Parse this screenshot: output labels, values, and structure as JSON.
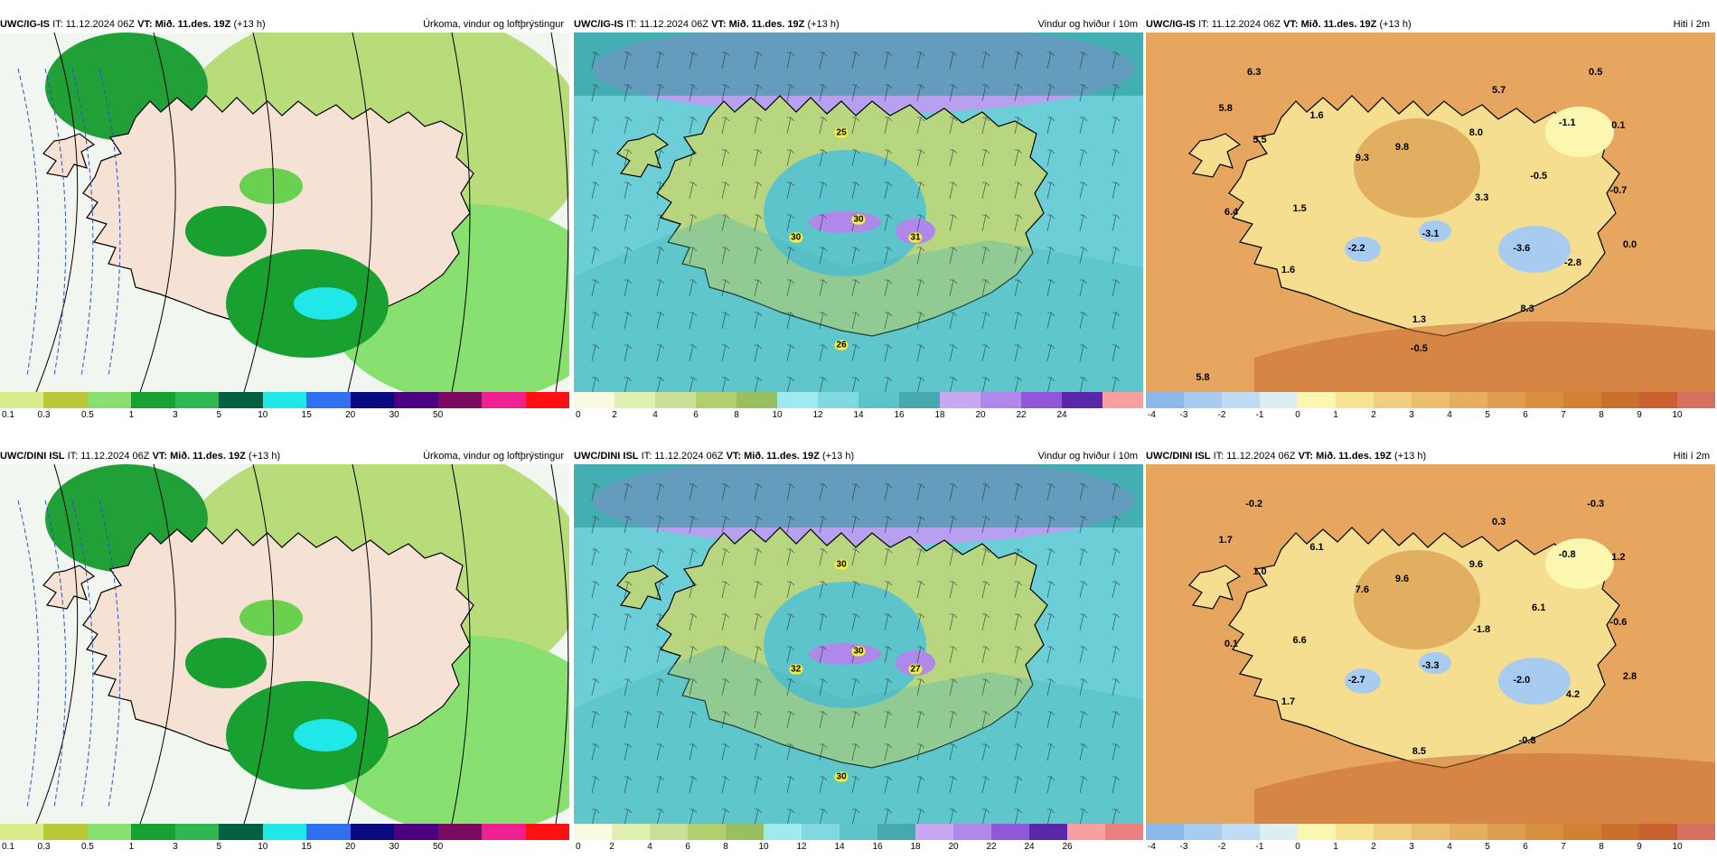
{
  "panels": [
    {
      "model": "UWC/IG-IS",
      "it_label": "IT:",
      "it": "11.12.2024 06Z",
      "vt_label": "VT:",
      "vt": "Mið. 11.des. 19Z",
      "lead": "(+13 h)",
      "varname": "Úrkoma, vindur og loftþrýstingur",
      "kind": "precip",
      "colors": [
        "#d8ec8c",
        "#b8c838",
        "#88e070",
        "#18a030",
        "#30b850",
        "#046040",
        "#20e8e8",
        "#3070f0",
        "#0a0a80",
        "#4a0080",
        "#7a0a60",
        "#f02090",
        "#ff1010"
      ],
      "ticks": [
        "0.1",
        "0.3",
        "0.5",
        "1",
        "3",
        "5",
        "10",
        "15",
        "20",
        "30",
        "50"
      ],
      "markers": []
    },
    {
      "model": "UWC/IG-IS",
      "it_label": "IT:",
      "it": "11.12.2024 06Z",
      "vt_label": "VT:",
      "vt": "Mið. 11.des. 19Z",
      "lead": "(+13 h)",
      "varname": "Vindur og hviður í 10m",
      "kind": "wind",
      "colors": [
        "#fafae0",
        "#e0f0b0",
        "#c8e098",
        "#b0d070",
        "#98c060",
        "#9eeaf0",
        "#80d8e0",
        "#5ec4cc",
        "#48a8b0",
        "#c8a8f0",
        "#b088ea",
        "#9058d8",
        "#5828a8",
        "#f8a0a0"
      ],
      "ticks": [
        "0",
        "2",
        "4",
        "6",
        "8",
        "10",
        "12",
        "14",
        "16",
        "18",
        "20",
        "22",
        "24"
      ],
      "markers": [
        "25",
        "30",
        "30",
        "31",
        "26"
      ]
    },
    {
      "model": "UWC/IG-IS",
      "it_label": "IT:",
      "it": "11.12.2024 06Z",
      "vt_label": "VT:",
      "vt": "Mið. 11.des. 19Z",
      "lead": "(+13 h)",
      "varname": "Hiti í 2m",
      "kind": "temp",
      "colors": [
        "#8cb8ea",
        "#a8ccf0",
        "#c0dcf4",
        "#dceef0",
        "#fbf6b0",
        "#f6e494",
        "#f0d080",
        "#eac070",
        "#e4b060",
        "#dea050",
        "#d89040",
        "#d28034",
        "#c8702c",
        "#c86030",
        "#d87060"
      ],
      "ticks": [
        "-4",
        "-3",
        "-2",
        "-1",
        "0",
        "1",
        "2",
        "3",
        "4",
        "5",
        "6",
        "7",
        "8",
        "9",
        "10"
      ],
      "markers": [
        "6.3",
        "5.8",
        "5.5",
        "1.6",
        "9.3",
        "9.8",
        "8.0",
        "5.7",
        "-1.1",
        "0.5",
        "0.1",
        "-0.5",
        "-0.7",
        "6.4",
        "1.5",
        "3.3",
        "-2.2",
        "-3.1",
        "-3.6",
        "-2.8",
        "0.0",
        "1.6",
        "1.3",
        "8.3",
        "-0.5",
        "5.8"
      ]
    },
    {
      "model": "UWC/DINI ISL",
      "it_label": "IT:",
      "it": "11.12.2024 06Z",
      "vt_label": "VT:",
      "vt": "Mið. 11.des. 19Z",
      "lead": "(+13 h)",
      "varname": "Úrkoma, vindur og loftþrýstingur",
      "kind": "precip",
      "colors": [
        "#d8ec8c",
        "#b8c838",
        "#88e070",
        "#18a030",
        "#30b850",
        "#046040",
        "#20e8e8",
        "#3070f0",
        "#0a0a80",
        "#4a0080",
        "#7a0a60",
        "#f02090",
        "#ff1010"
      ],
      "ticks": [
        "0.1",
        "0.3",
        "0.5",
        "1",
        "3",
        "5",
        "10",
        "15",
        "20",
        "30",
        "50"
      ],
      "markers": []
    },
    {
      "model": "UWC/DINI ISL",
      "it_label": "IT:",
      "it": "11.12.2024 06Z",
      "vt_label": "VT:",
      "vt": "Mið. 11.des. 19Z",
      "lead": "(+13 h)",
      "varname": "Vindur og hviður í 10m",
      "kind": "wind",
      "colors": [
        "#fafae0",
        "#e0f0b0",
        "#c8e098",
        "#b0d070",
        "#98c060",
        "#9eeaf0",
        "#80d8e0",
        "#5ec4cc",
        "#48a8b0",
        "#c8a8f0",
        "#b088ea",
        "#9058d8",
        "#5828a8",
        "#f8a0a0",
        "#ec8080"
      ],
      "ticks": [
        "0",
        "2",
        "4",
        "6",
        "8",
        "10",
        "12",
        "14",
        "16",
        "18",
        "20",
        "22",
        "24",
        "26"
      ],
      "markers": [
        "30",
        "30",
        "32",
        "27",
        "30"
      ]
    },
    {
      "model": "UWC/DINI ISL",
      "it_label": "IT:",
      "it": "11.12.2024 06Z",
      "vt_label": "VT:",
      "vt": "Mið. 11.des. 19Z",
      "lead": "(+13 h)",
      "varname": "Hiti í 2m",
      "kind": "temp",
      "colors": [
        "#8cb8ea",
        "#a8ccf0",
        "#c0dcf4",
        "#dceef0",
        "#fbf6b0",
        "#f6e494",
        "#f0d080",
        "#eac070",
        "#e4b060",
        "#dea050",
        "#d89040",
        "#d28034",
        "#c8702c",
        "#c86030",
        "#d87060"
      ],
      "ticks": [
        "-4",
        "-3",
        "-2",
        "-1",
        "0",
        "1",
        "2",
        "3",
        "4",
        "5",
        "6",
        "7",
        "8",
        "9",
        "10"
      ],
      "markers": [
        "-0.2",
        "1.7",
        "1.0",
        "6.1",
        "7.6",
        "9.6",
        "9.6",
        "0.3",
        "-0.8",
        "-0.3",
        "1.2",
        "6.1",
        "-0.6",
        "0.1",
        "6.6",
        "-1.8",
        "-2.7",
        "-3.3",
        "-2.0",
        "4.2",
        "2.8",
        "1.7",
        "8.5",
        "-0.8"
      ]
    }
  ]
}
